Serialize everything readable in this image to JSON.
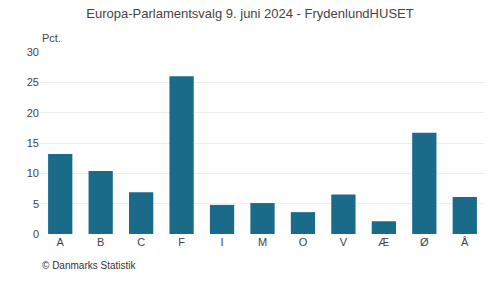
{
  "chart_data": {
    "type": "bar",
    "title": "Europa-Parlamentsvalg 9. juni 2024 - FrydenlundHUSET",
    "ylabel": "Pct.",
    "annotations": [
      "© Danmarks Statistik"
    ],
    "categories": [
      "A",
      "B",
      "C",
      "F",
      "I",
      "M",
      "O",
      "V",
      "Æ",
      "Ø",
      "Å"
    ],
    "values": [
      13.2,
      10.4,
      6.9,
      26.0,
      4.8,
      5.1,
      3.6,
      6.5,
      2.1,
      16.7,
      6.1
    ],
    "color": "#1a6b8a",
    "ylim": [
      0,
      30
    ],
    "yticks": [
      0,
      5,
      10,
      15,
      20,
      25,
      30
    ],
    "grid": true
  }
}
